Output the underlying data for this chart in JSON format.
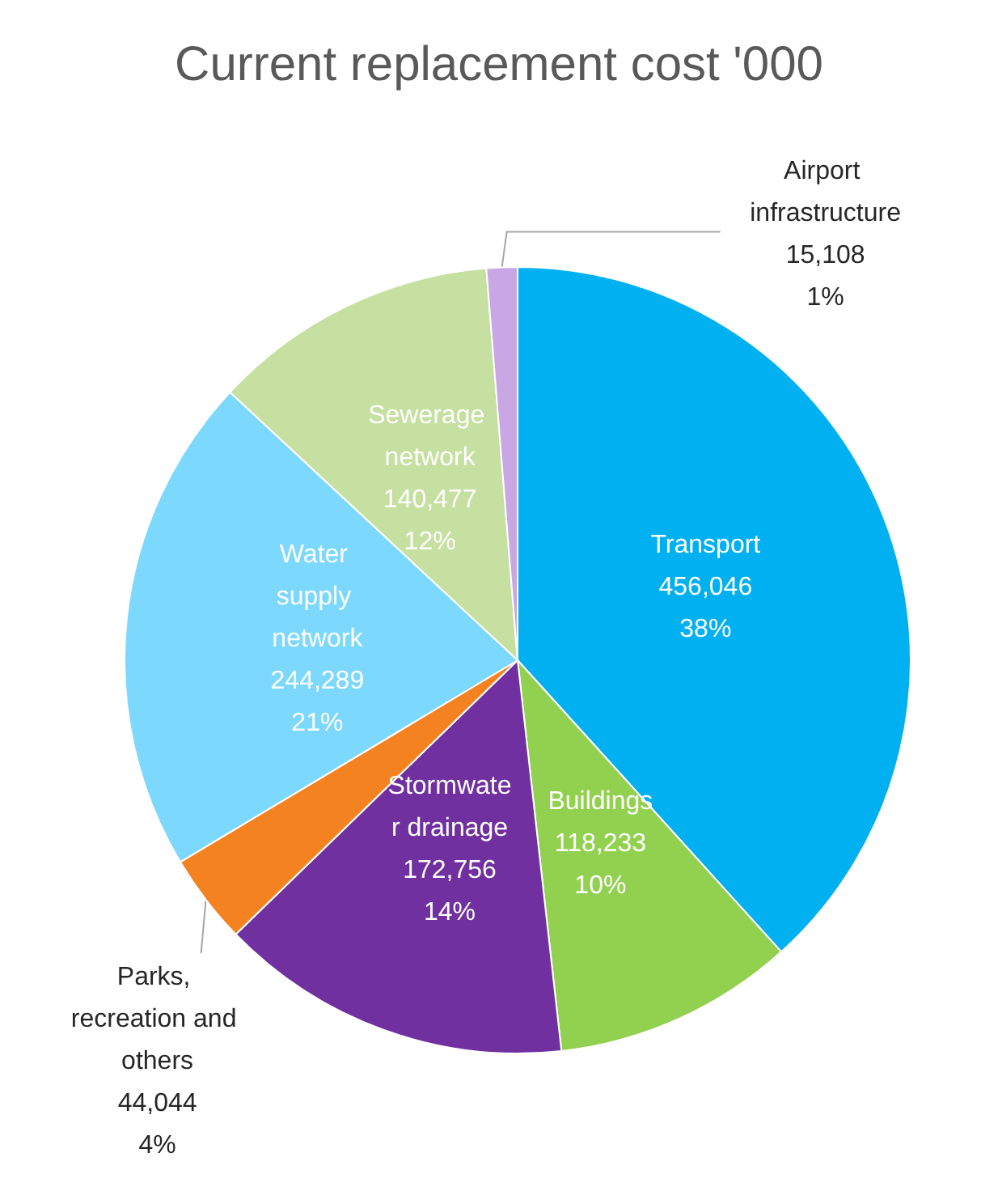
{
  "chart_data": {
    "type": "pie",
    "title": "Current replacement cost '000",
    "categories": [
      "Transport",
      "Buildings",
      "Stormwater drainage",
      "Parks, recreation and others",
      "Water supply network",
      "Sewerage network",
      "Airport infrastructure"
    ],
    "values": [
      456046,
      118233,
      172756,
      44044,
      244289,
      140477,
      15108
    ],
    "colors": [
      "#00b0f0",
      "#92d050",
      "#7030a0",
      "#f58220",
      "#7dd8fd",
      "#c5e0a0",
      "#c9a6e4"
    ],
    "value_labels": [
      "456,046\n38%",
      "118,233\n10%",
      "172,756\n14%",
      "44,044\n4%",
      "244,289\n21%",
      "140,477\n12%",
      "15,108\n1%"
    ],
    "legend": false
  }
}
